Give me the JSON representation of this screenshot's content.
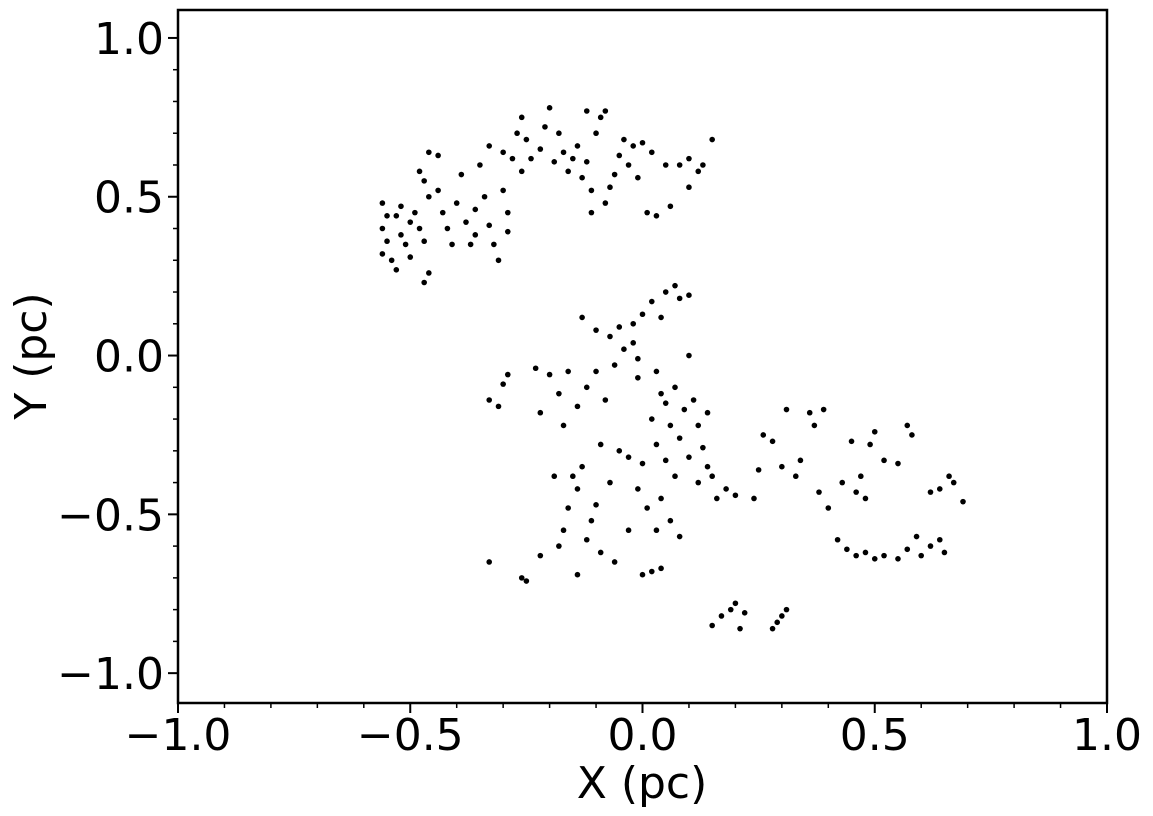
{
  "chart_data": {
    "type": "scatter",
    "xlabel": "X (pc)",
    "ylabel": "Y (pc)",
    "color": "#000000",
    "xlim": [
      -1.0,
      1.0
    ],
    "ylim": [
      -1.094,
      1.088
    ],
    "xticks": [
      {
        "value": -1.0,
        "label": "−1.0"
      },
      {
        "value": -0.5,
        "label": "−0.5"
      },
      {
        "value": 0.0,
        "label": "0.0"
      },
      0.5,
      {
        "value": 1.0,
        "label": "1.0"
      }
    ],
    "yticks": [
      {
        "value": -1.0,
        "label": "−1.0"
      },
      {
        "value": -0.5,
        "label": "−0.5"
      },
      {
        "value": 0.0,
        "label": "0.0"
      },
      0.5,
      {
        "value": 1.0,
        "label": "1.0"
      }
    ],
    "xminorticks": [
      -0.9,
      -0.8,
      -0.7,
      -0.6,
      -0.4,
      -0.3,
      -0.2,
      -0.1,
      0.1,
      0.2,
      0.3,
      0.4,
      0.6,
      0.7,
      0.8,
      0.9
    ],
    "yminorticks": [
      -0.9,
      -0.8,
      -0.7,
      -0.6,
      -0.4,
      -0.3,
      -0.2,
      -0.1,
      0.1,
      0.2,
      0.3,
      0.4,
      0.6,
      0.7,
      0.8,
      0.9
    ],
    "x": [
      -0.56,
      -0.55,
      -0.56,
      -0.55,
      -0.56,
      -0.54,
      -0.53,
      -0.52,
      -0.51,
      -0.52,
      -0.5,
      -0.5,
      -0.49,
      -0.48,
      -0.47,
      -0.47,
      -0.46,
      -0.46,
      -0.47,
      -0.48,
      -0.46,
      -0.44,
      -0.44,
      -0.43,
      -0.42,
      -0.41,
      -0.4,
      -0.39,
      -0.38,
      -0.37,
      -0.36,
      -0.36,
      -0.35,
      -0.34,
      -0.33,
      -0.32,
      -0.31,
      -0.3,
      -0.29,
      -0.29,
      -0.3,
      -0.28,
      -0.27,
      -0.26,
      -0.25,
      -0.24,
      -0.22,
      -0.21,
      -0.2,
      -0.19,
      -0.18,
      -0.17,
      -0.16,
      -0.15,
      -0.14,
      -0.13,
      -0.12,
      -0.11,
      -0.1,
      -0.09,
      -0.08,
      -0.07,
      -0.06,
      -0.05,
      -0.04,
      -0.03,
      -0.02,
      -0.01,
      0.01,
      0.03,
      0.05,
      0.06,
      0.08,
      0.1,
      0.12,
      0.13,
      0.15,
      -0.11,
      -0.26,
      -0.33,
      -0.53,
      -0.12,
      -0.08,
      0.0,
      0.02,
      0.1,
      -0.13,
      -0.1,
      -0.07,
      -0.05,
      -0.04,
      -0.02,
      -0.01,
      0.0,
      0.02,
      0.04,
      0.05,
      0.07,
      0.08,
      0.1,
      0.1,
      -0.02,
      0.03,
      -0.01,
      -0.33,
      -0.31,
      -0.3,
      -0.29,
      -0.23,
      -0.22,
      -0.2,
      -0.18,
      -0.17,
      -0.16,
      -0.14,
      -0.12,
      -0.1,
      -0.08,
      -0.06,
      0.02,
      0.03,
      0.04,
      0.05,
      0.05,
      0.06,
      0.07,
      0.07,
      0.08,
      0.09,
      0.1,
      0.11,
      0.12,
      0.13,
      0.14,
      0.15,
      0.0,
      -0.01,
      0.01,
      0.03,
      0.04,
      0.06,
      0.08,
      -0.03,
      -0.05,
      -0.07,
      -0.09,
      -0.1,
      -0.11,
      -0.13,
      -0.14,
      -0.15,
      -0.16,
      -0.17,
      -0.18,
      -0.19,
      -0.12,
      -0.09,
      -0.06,
      -0.03,
      0.0,
      0.02,
      0.04,
      -0.14,
      -0.22,
      -0.26,
      -0.25,
      -0.33,
      0.12,
      0.14,
      0.16,
      0.18,
      0.2,
      0.24,
      0.25,
      0.26,
      0.28,
      0.3,
      0.31,
      0.33,
      0.34,
      0.36,
      0.37,
      0.38,
      0.39,
      0.4,
      0.43,
      0.45,
      0.46,
      0.47,
      0.48,
      0.49,
      0.5,
      0.52,
      0.55,
      0.57,
      0.58,
      0.62,
      0.64,
      0.66,
      0.67,
      0.69,
      0.42,
      0.44,
      0.46,
      0.48,
      0.5,
      0.52,
      0.55,
      0.57,
      0.59,
      0.6,
      0.62,
      0.64,
      0.65,
      0.15,
      0.17,
      0.19,
      0.2,
      0.21,
      0.22,
      0.28,
      0.29,
      0.3,
      0.31
    ],
    "values": [
      0.48,
      0.44,
      0.4,
      0.36,
      0.32,
      0.3,
      0.27,
      0.38,
      0.35,
      0.47,
      0.42,
      0.31,
      0.45,
      0.4,
      0.36,
      0.23,
      0.26,
      0.5,
      0.55,
      0.58,
      0.64,
      0.63,
      0.52,
      0.45,
      0.4,
      0.35,
      0.48,
      0.57,
      0.42,
      0.35,
      0.38,
      0.46,
      0.6,
      0.5,
      0.41,
      0.35,
      0.3,
      0.52,
      0.45,
      0.39,
      0.64,
      0.62,
      0.7,
      0.75,
      0.68,
      0.62,
      0.65,
      0.72,
      0.78,
      0.61,
      0.7,
      0.64,
      0.58,
      0.62,
      0.66,
      0.56,
      0.61,
      0.52,
      0.7,
      0.75,
      0.48,
      0.53,
      0.57,
      0.63,
      0.68,
      0.6,
      0.66,
      0.56,
      0.45,
      0.44,
      0.6,
      0.47,
      0.6,
      0.62,
      0.58,
      0.6,
      0.68,
      0.45,
      0.58,
      0.66,
      0.44,
      0.77,
      0.77,
      0.67,
      0.64,
      0.53,
      0.12,
      0.08,
      0.06,
      0.09,
      0.02,
      0.04,
      -0.01,
      0.13,
      0.17,
      0.12,
      0.2,
      0.22,
      0.18,
      0.19,
      0.0,
      0.1,
      -0.05,
      -0.07,
      -0.14,
      -0.16,
      -0.09,
      -0.06,
      -0.04,
      -0.18,
      -0.06,
      -0.12,
      -0.22,
      -0.05,
      -0.16,
      -0.1,
      -0.05,
      -0.14,
      -0.03,
      -0.2,
      -0.28,
      -0.12,
      -0.33,
      -0.15,
      -0.22,
      -0.38,
      -0.1,
      -0.26,
      -0.17,
      -0.32,
      -0.14,
      -0.22,
      -0.29,
      -0.18,
      -0.38,
      -0.34,
      -0.42,
      -0.48,
      -0.55,
      -0.45,
      -0.52,
      -0.57,
      -0.32,
      -0.3,
      -0.4,
      -0.28,
      -0.47,
      -0.52,
      -0.35,
      -0.42,
      -0.38,
      -0.48,
      -0.55,
      -0.6,
      -0.38,
      -0.58,
      -0.62,
      -0.65,
      -0.55,
      -0.69,
      -0.68,
      -0.67,
      -0.69,
      -0.63,
      -0.7,
      -0.71,
      -0.65,
      -0.4,
      -0.35,
      -0.45,
      -0.42,
      -0.44,
      -0.45,
      -0.36,
      -0.25,
      -0.27,
      -0.35,
      -0.17,
      -0.38,
      -0.33,
      -0.18,
      -0.22,
      -0.43,
      -0.17,
      -0.48,
      -0.4,
      -0.27,
      -0.43,
      -0.38,
      -0.45,
      -0.28,
      -0.24,
      -0.33,
      -0.34,
      -0.22,
      -0.25,
      -0.43,
      -0.42,
      -0.38,
      -0.4,
      -0.46,
      -0.58,
      -0.61,
      -0.63,
      -0.62,
      -0.64,
      -0.63,
      -0.64,
      -0.61,
      -0.57,
      -0.63,
      -0.6,
      -0.58,
      -0.62,
      -0.85,
      -0.82,
      -0.8,
      -0.78,
      -0.86,
      -0.81,
      -0.86,
      -0.84,
      -0.82,
      -0.8
    ]
  }
}
